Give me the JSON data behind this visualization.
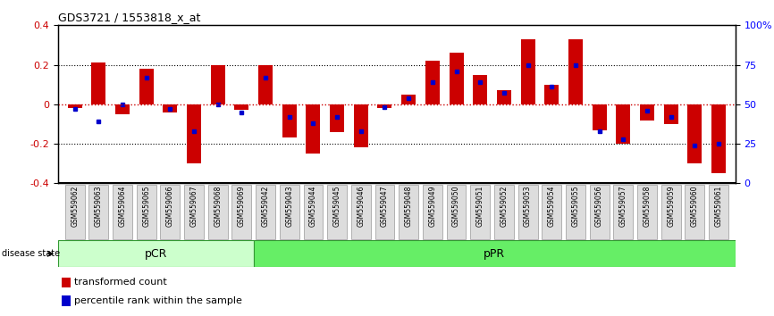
{
  "title": "GDS3721 / 1553818_x_at",
  "samples": [
    "GSM559062",
    "GSM559063",
    "GSM559064",
    "GSM559065",
    "GSM559066",
    "GSM559067",
    "GSM559068",
    "GSM559069",
    "GSM559042",
    "GSM559043",
    "GSM559044",
    "GSM559045",
    "GSM559046",
    "GSM559047",
    "GSM559048",
    "GSM559049",
    "GSM559050",
    "GSM559051",
    "GSM559052",
    "GSM559053",
    "GSM559054",
    "GSM559055",
    "GSM559056",
    "GSM559057",
    "GSM559058",
    "GSM559059",
    "GSM559060",
    "GSM559061"
  ],
  "transformed_count": [
    -0.02,
    0.21,
    -0.05,
    0.18,
    -0.04,
    -0.3,
    0.2,
    -0.03,
    0.2,
    -0.17,
    -0.25,
    -0.14,
    -0.22,
    -0.02,
    0.05,
    0.22,
    0.26,
    0.15,
    0.07,
    0.33,
    0.1,
    0.33,
    -0.13,
    -0.2,
    -0.08,
    -0.1,
    -0.3,
    -0.35
  ],
  "percentile_rank": [
    47,
    39,
    50,
    67,
    47,
    33,
    50,
    45,
    67,
    42,
    38,
    42,
    33,
    48,
    54,
    64,
    71,
    64,
    57,
    75,
    61,
    75,
    33,
    28,
    46,
    42,
    24,
    25
  ],
  "pCR_count": 8,
  "pPR_count": 20,
  "bar_color": "#cc0000",
  "dot_color": "#0000cc",
  "ylim": [
    -0.4,
    0.4
  ],
  "y2lim": [
    0,
    100
  ],
  "yticks": [
    -0.4,
    -0.2,
    0.0,
    0.2,
    0.4
  ],
  "y2ticks": [
    0,
    25,
    50,
    75,
    100
  ],
  "y2ticklabels": [
    "0",
    "25",
    "50",
    "75",
    "100%"
  ],
  "pCR_color": "#ccffcc",
  "pPR_color": "#66ee66",
  "pCR_label": "pCR",
  "pPR_label": "pPR",
  "disease_state_label": "disease state",
  "legend_items": [
    "transformed count",
    "percentile rank within the sample"
  ],
  "legend_colors": [
    "#cc0000",
    "#0000cc"
  ],
  "tick_box_face": "#dddddd",
  "tick_box_edge": "#999999"
}
